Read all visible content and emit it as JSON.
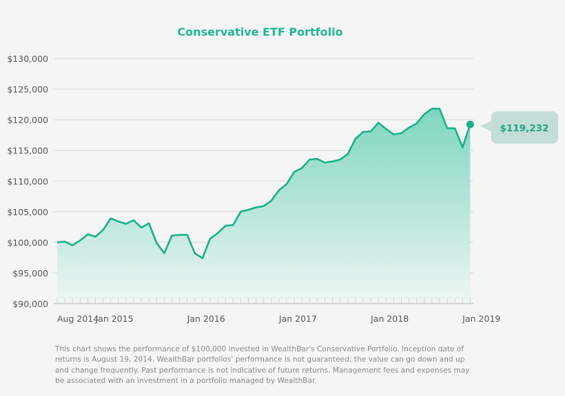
{
  "chart_data": {
    "type": "area",
    "title": "Conservative ETF Portfolio",
    "xlabel": "",
    "ylabel": "",
    "ylim": [
      90000,
      130000
    ],
    "yticks": [
      "$90,000",
      "$95,000",
      "$100,000",
      "$105,000",
      "$110,000",
      "$115,000",
      "$120,000",
      "$125,000",
      "$130,000"
    ],
    "ytick_values": [
      90000,
      95000,
      100000,
      105000,
      110000,
      115000,
      120000,
      125000,
      130000
    ],
    "xticks": [
      {
        "label": "Aug 2014",
        "x": "2014-08"
      },
      {
        "label": "Jan 2015",
        "x": "2015-01"
      },
      {
        "label": "Jan 2016",
        "x": "2016-01"
      },
      {
        "label": "Jan 2017",
        "x": "2017-01"
      },
      {
        "label": "Jan 2018",
        "x": "2018-01"
      },
      {
        "label": "Jan 2019",
        "x": "2019-01"
      }
    ],
    "grid": true,
    "x": [
      "2014-08",
      "2014-09",
      "2014-10",
      "2014-11",
      "2014-12",
      "2015-01",
      "2015-02",
      "2015-03",
      "2015-04",
      "2015-05",
      "2015-06",
      "2015-07",
      "2015-08",
      "2015-09",
      "2015-10",
      "2015-11",
      "2015-12",
      "2016-01",
      "2016-02",
      "2016-03",
      "2016-04",
      "2016-05",
      "2016-06",
      "2016-07",
      "2016-08",
      "2016-09",
      "2016-10",
      "2016-11",
      "2016-12",
      "2017-01",
      "2017-02",
      "2017-03",
      "2017-04",
      "2017-05",
      "2017-06",
      "2017-07",
      "2017-08",
      "2017-09",
      "2017-10",
      "2017-11",
      "2017-12",
      "2018-01",
      "2018-02",
      "2018-03",
      "2018-04",
      "2018-05",
      "2018-06",
      "2018-07",
      "2018-08",
      "2018-09",
      "2018-10",
      "2018-11",
      "2018-12",
      "2019-01",
      "2019-02"
    ],
    "values": [
      100000,
      100100,
      99500,
      100300,
      101300,
      100900,
      102000,
      103900,
      103400,
      103000,
      103600,
      102400,
      103100,
      99900,
      98200,
      101100,
      101200,
      101200,
      98200,
      97400,
      100600,
      101500,
      102700,
      102800,
      105000,
      105300,
      105700,
      105900,
      106800,
      108500,
      109500,
      111500,
      112100,
      113500,
      113600,
      113000,
      113200,
      113500,
      114400,
      116900,
      118000,
      118100,
      119500,
      118500,
      117600,
      117800,
      118700,
      119400,
      120900,
      121800,
      121800,
      118600,
      118600,
      115500,
      119232
    ],
    "annotation": {
      "label": "$119,232",
      "value": 119232
    },
    "colors": {
      "line": "#17b088",
      "fill_top": "#7fd6bf",
      "fill_bottom": "#eef5f3",
      "tooltip_bg": "#c5ddd7",
      "title": "#1fb890"
    }
  },
  "footnote": "This chart shows the performance of $100,000 invested in WealthBar's Conservative Portfolio. Inception date of returns is August 19, 2014. WealthBar portfolios' performance is not guaranteed; the value can go down and up and change frequently. Past performance is not indicative of future returns. Management fees and expenses may be associated with an investment in a portfolio managed by WealthBar."
}
